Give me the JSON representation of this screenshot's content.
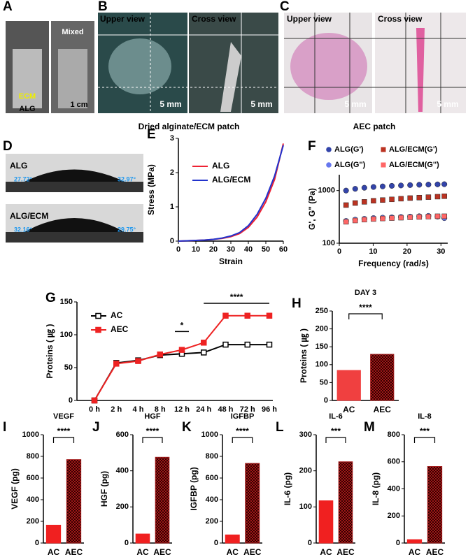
{
  "photos": {
    "a": {
      "label": "A",
      "mixed": "Mixed",
      "ecm": "ECM",
      "alg": "ALG",
      "scale": "1 cm"
    },
    "b": {
      "label": "B",
      "upper": "Upper view",
      "cross": "Cross view",
      "scale1": "5 mm",
      "scale2": "5 mm",
      "caption": "Dried alginate/ECM patch"
    },
    "c": {
      "label": "C",
      "upper": "Upper view",
      "cross": "Cross view",
      "scale1": "5 mm",
      "scale2": "5 mm",
      "caption": "AEC patch"
    },
    "d": {
      "label": "D",
      "alg": "ALG",
      "alg_left": "27.72°",
      "alg_right": "32.97°",
      "ecm": "ALG/ECM",
      "ecm_left": "32.16°",
      "ecm_right": "29.75°"
    }
  },
  "chart_data": [
    {
      "type": "line",
      "panel": "E",
      "x_label": "Strain",
      "y_label": "Stress (MPa)",
      "x": [
        0,
        5,
        10,
        15,
        20,
        25,
        30,
        35,
        40,
        45,
        50,
        55,
        60
      ],
      "series": [
        {
          "name": "ALG",
          "color": "#ee2233",
          "values": [
            0,
            0.01,
            0.02,
            0.03,
            0.05,
            0.08,
            0.13,
            0.22,
            0.4,
            0.7,
            1.15,
            1.8,
            2.85
          ]
        },
        {
          "name": "ALG/ECM",
          "color": "#2233cc",
          "values": [
            0,
            0.01,
            0.02,
            0.03,
            0.05,
            0.09,
            0.15,
            0.25,
            0.45,
            0.78,
            1.25,
            1.9,
            2.8
          ]
        }
      ],
      "xlim": [
        0,
        60
      ],
      "xticks": [
        0,
        10,
        20,
        30,
        40,
        50,
        60
      ],
      "ylim": [
        0,
        3
      ],
      "yticks": [
        0,
        1,
        2,
        3
      ]
    },
    {
      "type": "scatter",
      "panel": "F",
      "x_label": "Frequency (rad/s)",
      "y_label": "G', G\" (Pa)",
      "log_y": true,
      "x": [
        2,
        4.7,
        7.4,
        10.1,
        12.8,
        15.5,
        18.2,
        20.9,
        23.6,
        26.3,
        29,
        31
      ],
      "series": [
        {
          "name": "ALG(G')",
          "color": "#3344aa",
          "marker": "circle",
          "values": [
            1000,
            1080,
            1130,
            1170,
            1200,
            1230,
            1250,
            1270,
            1290,
            1300,
            1310,
            1320
          ]
        },
        {
          "name": "ALG/ECM(G')",
          "color": "#bb3322",
          "marker": "square",
          "values": [
            530,
            580,
            610,
            640,
            660,
            680,
            700,
            720,
            735,
            750,
            765,
            780
          ]
        },
        {
          "name": "ALG(G'')",
          "color": "#6677ee",
          "marker": "circle",
          "values": [
            265,
            280,
            290,
            300,
            305,
            310,
            315,
            320,
            325,
            330,
            320,
            300
          ]
        },
        {
          "name": "ALG/ECM(G'')",
          "color": "#ff6666",
          "marker": "square",
          "values": [
            255,
            270,
            280,
            288,
            295,
            300,
            305,
            310,
            315,
            320,
            325,
            325
          ]
        }
      ],
      "xlim": [
        0,
        32
      ],
      "xticks": [
        0,
        10,
        20,
        30
      ],
      "ylim": [
        100,
        2000
      ],
      "yticks": [
        100,
        1000
      ]
    },
    {
      "type": "line",
      "panel": "G",
      "y_label": "Proteins ( ㎍ )",
      "categories": [
        "0 h",
        "2 h",
        "4 h",
        "8 h",
        "12 h",
        "24 h",
        "48 h",
        "72 h",
        "96 h"
      ],
      "series": [
        {
          "name": "AC",
          "color": "#000000",
          "values": [
            0,
            57,
            61,
            69,
            71,
            73,
            85,
            85,
            85
          ]
        },
        {
          "name": "AEC",
          "color": "#ee2222",
          "values": [
            0,
            56,
            60,
            70,
            77,
            88,
            129,
            129,
            129
          ]
        }
      ],
      "annotations": [
        "*",
        "****"
      ],
      "ylim": [
        0,
        150
      ],
      "yticks": [
        0,
        50,
        100,
        150
      ]
    },
    {
      "type": "bar",
      "panel": "H",
      "title": "DAY 3",
      "y_label": "Proteins ( ㎍ )",
      "categories": [
        "AC",
        "AEC"
      ],
      "values": [
        84,
        129
      ],
      "colors": [
        "#f04040",
        "#a01818"
      ],
      "annotation": "****",
      "ylim": [
        0,
        250
      ],
      "yticks": [
        0,
        50,
        100,
        150,
        200,
        250
      ]
    },
    {
      "type": "bar",
      "panel": "I",
      "title": "VEGF",
      "y_label": "VEGF (pg)",
      "categories": [
        "AC",
        "AEC"
      ],
      "values": [
        165,
        770
      ],
      "colors": [
        "#f02020",
        "#a01818"
      ],
      "annotation": "****",
      "ylim": [
        0,
        1000
      ],
      "yticks": [
        0,
        200,
        400,
        600,
        800,
        1000
      ]
    },
    {
      "type": "bar",
      "panel": "J",
      "title": "HGF",
      "y_label": "HGF (pg)",
      "categories": [
        "AC",
        "AEC"
      ],
      "values": [
        50,
        475
      ],
      "colors": [
        "#f02020",
        "#a01818"
      ],
      "annotation": "****",
      "ylim": [
        0,
        600
      ],
      "yticks": [
        0,
        200,
        400,
        600
      ]
    },
    {
      "type": "bar",
      "panel": "K",
      "title": "IGFBP",
      "y_label": "IGFBP (pg)",
      "categories": [
        "AC",
        "AEC"
      ],
      "values": [
        75,
        735
      ],
      "colors": [
        "#f02020",
        "#a01818"
      ],
      "annotation": "****",
      "ylim": [
        0,
        1000
      ],
      "yticks": [
        0,
        200,
        400,
        600,
        800,
        1000
      ]
    },
    {
      "type": "bar",
      "panel": "L",
      "title": "IL-6",
      "y_label": "IL-6 (pg)",
      "categories": [
        "AC",
        "AEC"
      ],
      "values": [
        117,
        225
      ],
      "colors": [
        "#f02020",
        "#a01818"
      ],
      "annotation": "***",
      "ylim": [
        0,
        300
      ],
      "yticks": [
        0,
        100,
        200,
        300
      ]
    },
    {
      "type": "bar",
      "panel": "M",
      "title": "IL-8",
      "y_label": "IL-8 (pg)",
      "categories": [
        "AC",
        "AEC"
      ],
      "values": [
        25,
        565
      ],
      "colors": [
        "#f02020",
        "#a01818"
      ],
      "annotation": "***",
      "ylim": [
        0,
        800
      ],
      "yticks": [
        0,
        200,
        400,
        600,
        800
      ]
    }
  ]
}
